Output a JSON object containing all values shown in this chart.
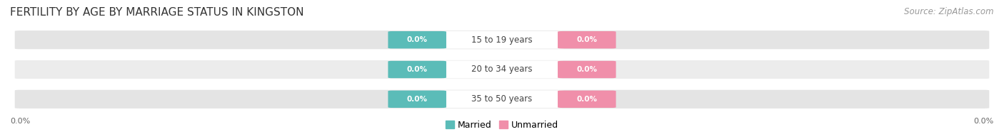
{
  "title": "FERTILITY BY AGE BY MARRIAGE STATUS IN KINGSTON",
  "source": "Source: ZipAtlas.com",
  "categories": [
    "15 to 19 years",
    "20 to 34 years",
    "35 to 50 years"
  ],
  "married_values": [
    0.0,
    0.0,
    0.0
  ],
  "unmarried_values": [
    0.0,
    0.0,
    0.0
  ],
  "married_color": "#5bbcb8",
  "unmarried_color": "#f08faa",
  "bar_bg_color": "#e4e4e4",
  "bar_bg_color_alt": "#ececec",
  "bg_color_main": "#f7f7f7",
  "bg_color_alt": "#f0f0f0",
  "axis_label_left": "0.0%",
  "axis_label_right": "0.0%",
  "title_fontsize": 11,
  "source_fontsize": 8.5,
  "label_fontsize": 7.5,
  "category_fontsize": 8.5,
  "legend_fontsize": 9,
  "figsize": [
    14.06,
    1.96
  ],
  "dpi": 100
}
